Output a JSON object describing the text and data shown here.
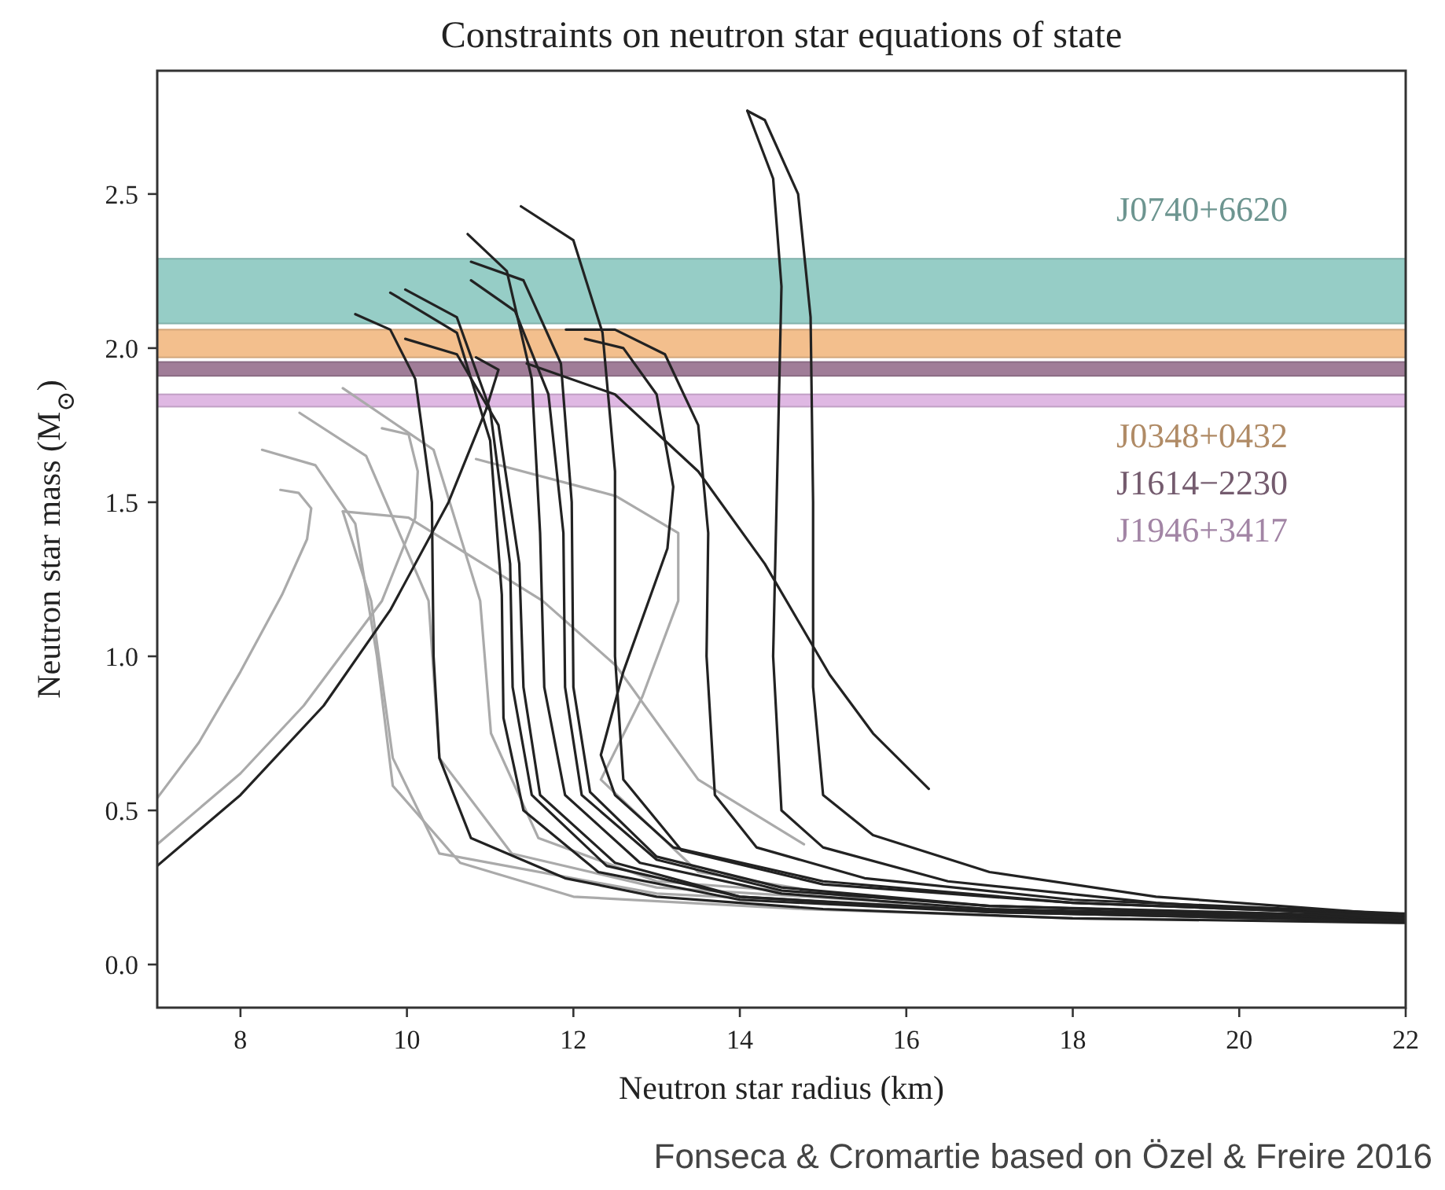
{
  "chart_data": {
    "type": "line",
    "title": "Constraints on neutron star equations of state",
    "xlabel": "Neutron star radius (km)",
    "ylabel": "Neutron star mass (M$_{⊙}$)",
    "xlim": [
      7,
      22
    ],
    "xticks": [
      8,
      10,
      12,
      14,
      16,
      18,
      20,
      22
    ],
    "ylim": [
      -0.14,
      2.9
    ],
    "yticks": [
      {
        "value": 0,
        "label": "0.0"
      },
      0.5,
      {
        "value": 1,
        "label": "1.0"
      },
      1.5,
      {
        "value": 2,
        "label": "2.0"
      },
      2.5
    ],
    "bands": [
      {
        "axis": "y",
        "from": 2.08,
        "to": 2.29,
        "label": "J0740+6620",
        "color": "#96cdc6"
      },
      {
        "axis": "y",
        "from": 1.97,
        "to": 2.06,
        "label": "J0348+0432",
        "color": "#f3bf8d"
      },
      {
        "axis": "y",
        "from": 1.91,
        "to": 1.955,
        "label": "J1614−2230",
        "color": "#a07d98"
      },
      {
        "axis": "y",
        "from": 1.81,
        "to": 1.85,
        "label": "J1946+3417",
        "color": "#dfb8e3"
      }
    ],
    "series": [
      {
        "color": "#aaaaaa",
        "x": [
          7,
          7.5,
          8,
          8.5,
          8.8,
          8.85,
          8.7,
          8.48
        ],
        "values": [
          0.54,
          0.72,
          0.95,
          1.2,
          1.38,
          1.48,
          1.53,
          1.54
        ]
      },
      {
        "color": "#aaaaaa",
        "x": [
          22,
          18,
          14.77,
          12,
          10.64,
          9.83,
          9.64,
          9.38,
          8.9,
          8.26
        ],
        "values": [
          0.14,
          0.15,
          0.18,
          0.22,
          0.33,
          0.58,
          1.0,
          1.43,
          1.62,
          1.67
        ]
      },
      {
        "color": "#aaaaaa",
        "x": [
          7,
          8,
          8.76,
          9.7,
          10.1,
          10.13,
          10.02,
          9.7
        ],
        "values": [
          0.39,
          0.62,
          0.84,
          1.18,
          1.45,
          1.6,
          1.72,
          1.74
        ]
      },
      {
        "color": "#aaaaaa",
        "x": [
          16,
          13,
          11.26,
          10.39,
          10.26,
          9.51,
          8.71
        ],
        "values": [
          0.2,
          0.25,
          0.36,
          0.67,
          1.18,
          1.65,
          1.79
        ]
      },
      {
        "color": "#aaaaaa",
        "x": [
          16,
          13,
          11.58,
          11.01,
          10.88,
          10.32,
          9.23
        ],
        "values": [
          0.21,
          0.27,
          0.41,
          0.75,
          1.18,
          1.67,
          1.87
        ]
      },
      {
        "color": "#aaaaaa",
        "x": [
          14.77,
          13.5,
          12.51,
          11.63,
          10.02,
          9.23
        ],
        "values": [
          0.39,
          0.6,
          0.97,
          1.18,
          1.45,
          1.47
        ]
      },
      {
        "color": "#aaaaaa",
        "x": [
          16,
          13,
          10.39,
          9.83,
          9.57,
          9.23
        ],
        "values": [
          0.19,
          0.23,
          0.36,
          0.67,
          1.18,
          1.47
        ]
      },
      {
        "color": "#aaaaaa",
        "x": [
          21,
          16,
          13.5,
          12.33,
          12.83,
          13.26,
          13.26,
          12.51,
          10.83
        ],
        "values": [
          0.14,
          0.19,
          0.3,
          0.6,
          0.87,
          1.18,
          1.4,
          1.52,
          1.64
        ]
      },
      {
        "color": "#222222",
        "x": [
          22,
          18,
          15,
          13,
          11.9,
          10.77,
          10.39,
          10.32,
          10.3,
          10.1,
          9.8,
          9.38
        ],
        "values": [
          0.135,
          0.15,
          0.18,
          0.22,
          0.28,
          0.41,
          0.67,
          1.0,
          1.5,
          1.9,
          2.06,
          2.11
        ]
      },
      {
        "color": "#222222",
        "x": [
          22,
          17,
          14,
          12.3,
          11.4,
          11.16,
          11.14,
          11.0,
          10.6,
          9.8
        ],
        "values": [
          0.14,
          0.17,
          0.21,
          0.3,
          0.5,
          0.8,
          1.2,
          1.7,
          2.05,
          2.18
        ]
      },
      {
        "color": "#222222",
        "x": [
          22,
          17,
          14,
          12.4,
          11.5,
          11.27,
          11.24,
          11.0,
          10.6,
          9.98
        ],
        "values": [
          0.145,
          0.175,
          0.22,
          0.32,
          0.55,
          0.9,
          1.3,
          1.8,
          2.1,
          2.19
        ]
      },
      {
        "color": "#222222",
        "x": [
          22,
          17,
          14,
          12.5,
          11.6,
          11.4,
          11.35,
          11.1,
          10.6,
          9.98
        ],
        "values": [
          0.14,
          0.17,
          0.22,
          0.33,
          0.55,
          0.9,
          1.3,
          1.75,
          1.98,
          2.03
        ]
      },
      {
        "color": "#222222",
        "x": [
          22,
          17,
          14.5,
          12.8,
          11.9,
          11.65,
          11.6,
          11.5,
          11.2,
          10.73
        ],
        "values": [
          0.15,
          0.18,
          0.23,
          0.33,
          0.55,
          0.9,
          1.4,
          1.9,
          2.25,
          2.37
        ]
      },
      {
        "color": "#222222",
        "x": [
          22,
          17,
          14.5,
          13,
          12.1,
          11.9,
          11.88,
          11.7,
          11.3,
          10.77
        ],
        "values": [
          0.15,
          0.19,
          0.24,
          0.34,
          0.55,
          0.9,
          1.4,
          1.85,
          2.12,
          2.22
        ]
      },
      {
        "color": "#222222",
        "x": [
          22,
          17,
          14.5,
          13,
          12.2,
          12.0,
          11.98,
          11.85,
          11.4,
          10.77
        ],
        "values": [
          0.155,
          0.19,
          0.25,
          0.35,
          0.56,
          0.9,
          1.5,
          1.95,
          2.22,
          2.28
        ]
      },
      {
        "color": "#222222",
        "x": [
          22,
          18,
          15,
          13.3,
          12.6,
          12.5,
          12.5,
          12.35,
          12.0,
          11.37
        ],
        "values": [
          0.16,
          0.2,
          0.26,
          0.37,
          0.6,
          1.0,
          1.6,
          2.05,
          2.35,
          2.46
        ]
      },
      {
        "color": "#222222",
        "x": [
          22,
          18,
          15,
          13.2,
          12.5,
          12.33,
          12.6,
          13.13,
          13.2,
          13.0,
          12.6,
          12.14
        ],
        "values": [
          0.16,
          0.2,
          0.27,
          0.38,
          0.55,
          0.68,
          0.95,
          1.35,
          1.55,
          1.85,
          2.0,
          2.03
        ]
      },
      {
        "color": "#222222",
        "x": [
          22,
          18,
          15.5,
          14.2,
          13.7,
          13.6,
          13.62,
          13.5,
          13.1,
          12.5,
          11.91
        ],
        "values": [
          0.165,
          0.21,
          0.28,
          0.38,
          0.55,
          1.0,
          1.4,
          1.75,
          1.98,
          2.06,
          2.06
        ]
      },
      {
        "color": "#222222",
        "x": [
          22,
          19,
          16.5,
          15,
          14.5,
          14.4,
          14.45,
          14.5,
          14.4,
          14.09
        ],
        "values": [
          0.15,
          0.2,
          0.27,
          0.38,
          0.5,
          1.0,
          1.6,
          2.2,
          2.55,
          2.77
        ]
      },
      {
        "color": "#222222",
        "x": [
          22,
          19,
          17,
          15.6,
          15.0,
          14.88,
          14.88,
          14.85,
          14.7,
          14.3,
          14.09
        ],
        "values": [
          0.16,
          0.22,
          0.3,
          0.42,
          0.55,
          0.9,
          1.5,
          2.1,
          2.5,
          2.74,
          2.77
        ]
      },
      {
        "color": "#222222",
        "x": [
          16.27,
          15.6,
          15.08,
          14.3,
          13.5,
          12.5,
          11.44
        ],
        "values": [
          0.57,
          0.75,
          0.94,
          1.3,
          1.6,
          1.85,
          1.95
        ]
      },
      {
        "color": "#222222",
        "x": [
          7,
          8,
          9,
          9.8,
          10.5,
          10.95,
          11.1,
          10.83
        ],
        "values": [
          0.32,
          0.55,
          0.84,
          1.15,
          1.5,
          1.8,
          1.93,
          1.97
        ]
      }
    ],
    "annotations": [
      "Fonseca & Cromartie based on Özel & Freire 2016"
    ]
  }
}
